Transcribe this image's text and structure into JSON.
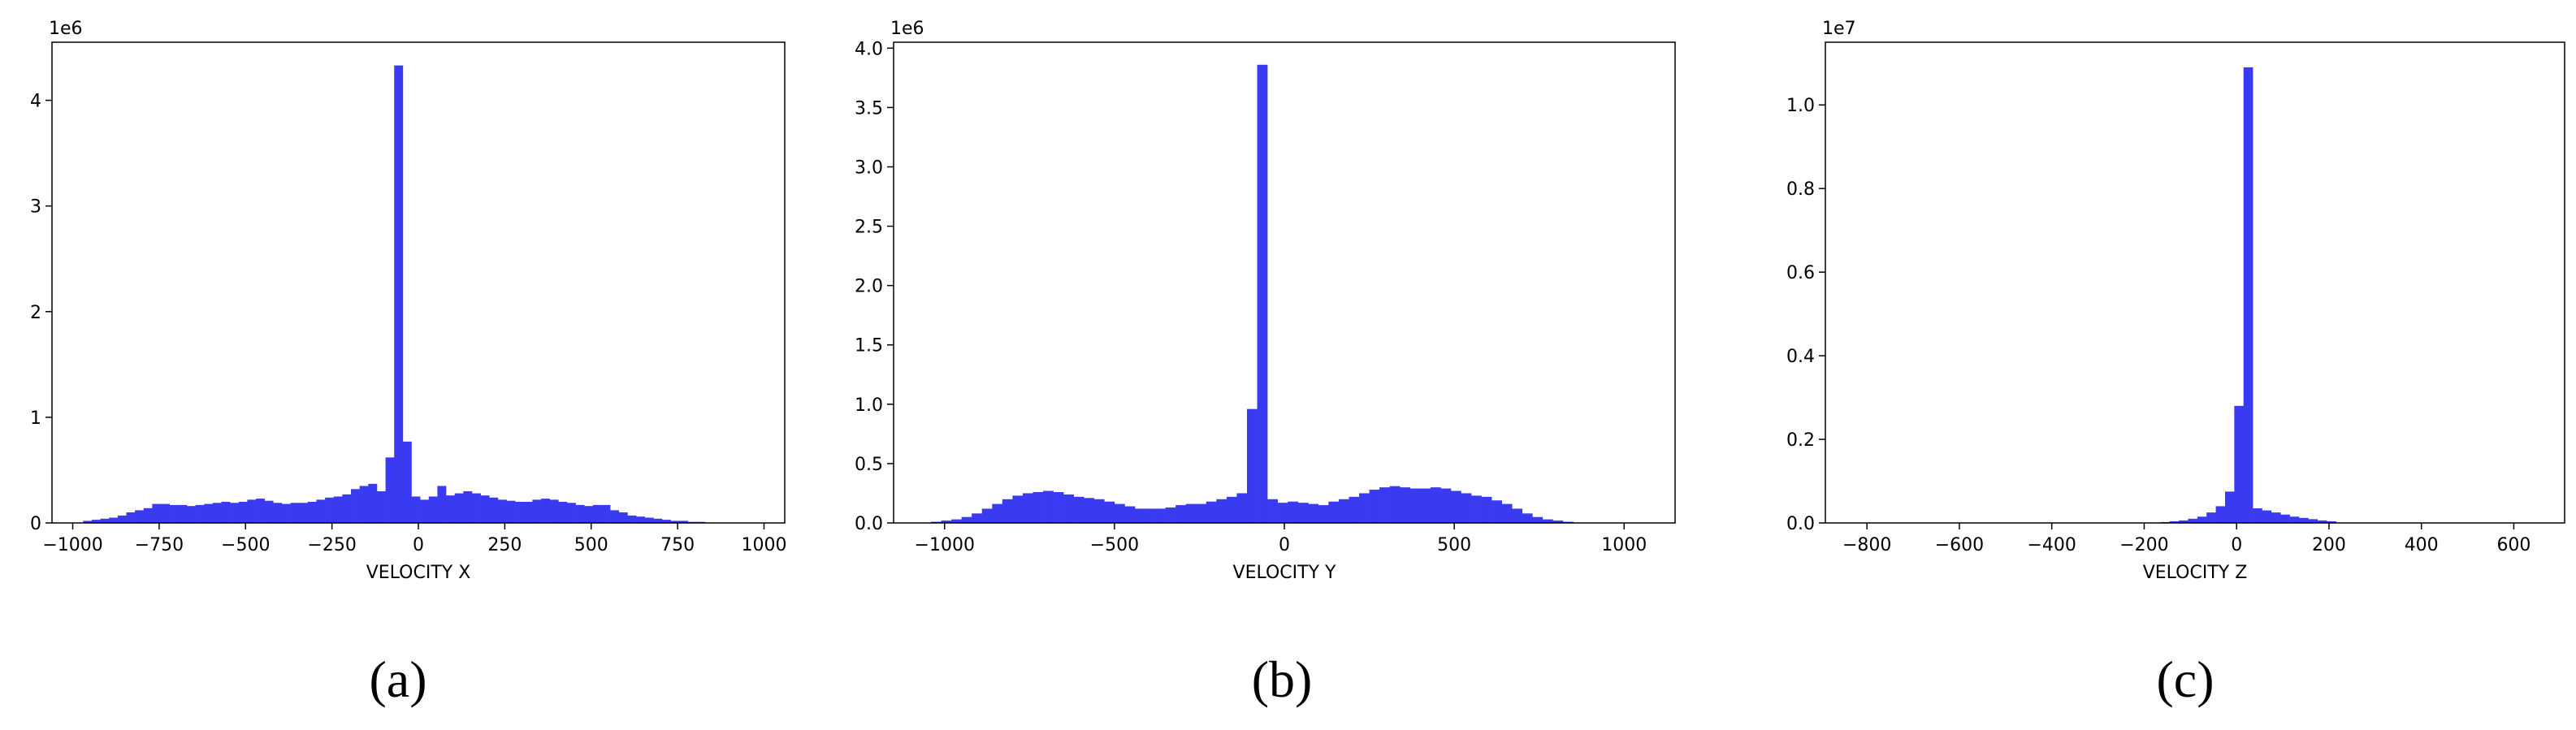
{
  "bar_color": "#3a3af2",
  "chart_data": [
    {
      "type": "bar",
      "caption": "(a)",
      "multiplier": "1e6",
      "xlabel": "VELOCITY X",
      "ylabel": "",
      "xlim": [
        -1060,
        1060
      ],
      "ylim": [
        0,
        4.55
      ],
      "xticks": [
        -1000,
        -750,
        -500,
        -250,
        0,
        250,
        500,
        750,
        1000
      ],
      "yticks": [
        0,
        1,
        2,
        3,
        4
      ],
      "xtick_labels": [
        "−1000",
        "−750",
        "−500",
        "−250",
        "0",
        "250",
        "500",
        "750",
        "1000"
      ],
      "ytick_labels": [
        "0",
        "1",
        "2",
        "3",
        "4"
      ],
      "bin_edges_start": -970,
      "bin_width": 25,
      "values": [
        0.02,
        0.03,
        0.04,
        0.05,
        0.07,
        0.1,
        0.12,
        0.14,
        0.18,
        0.18,
        0.17,
        0.17,
        0.16,
        0.17,
        0.18,
        0.19,
        0.2,
        0.19,
        0.2,
        0.22,
        0.23,
        0.21,
        0.19,
        0.18,
        0.19,
        0.19,
        0.2,
        0.22,
        0.24,
        0.25,
        0.27,
        0.32,
        0.35,
        0.37,
        0.3,
        0.62,
        4.33,
        0.77,
        0.25,
        0.22,
        0.25,
        0.35,
        0.26,
        0.28,
        0.3,
        0.28,
        0.26,
        0.24,
        0.22,
        0.21,
        0.2,
        0.2,
        0.22,
        0.23,
        0.22,
        0.2,
        0.19,
        0.17,
        0.16,
        0.17,
        0.17,
        0.12,
        0.1,
        0.07,
        0.06,
        0.05,
        0.04,
        0.03,
        0.02,
        0.02,
        0.01,
        0.01
      ]
    },
    {
      "type": "bar",
      "caption": "(b)",
      "multiplier": "1e6",
      "xlabel": "VELOCITY Y",
      "ylabel": "",
      "xlim": [
        -1150,
        1150
      ],
      "ylim": [
        0,
        4.05
      ],
      "xticks": [
        -1000,
        -500,
        0,
        500,
        1000
      ],
      "yticks": [
        0,
        0.5,
        1.0,
        1.5,
        2.0,
        2.5,
        3.0,
        3.5,
        4.0
      ],
      "xtick_labels": [
        "−1000",
        "−500",
        "0",
        "500",
        "1000"
      ],
      "ytick_labels": [
        "0.0",
        "0.5",
        "1.0",
        "1.5",
        "2.0",
        "2.5",
        "3.0",
        "3.5",
        "4.0"
      ],
      "bin_edges_start": -1040,
      "bin_width": 30,
      "values": [
        0.01,
        0.02,
        0.03,
        0.05,
        0.08,
        0.12,
        0.16,
        0.2,
        0.23,
        0.25,
        0.26,
        0.27,
        0.26,
        0.24,
        0.22,
        0.21,
        0.2,
        0.18,
        0.16,
        0.14,
        0.12,
        0.12,
        0.12,
        0.13,
        0.15,
        0.16,
        0.16,
        0.18,
        0.2,
        0.22,
        0.25,
        0.96,
        3.86,
        0.2,
        0.17,
        0.18,
        0.17,
        0.16,
        0.15,
        0.18,
        0.2,
        0.22,
        0.25,
        0.28,
        0.3,
        0.31,
        0.3,
        0.29,
        0.29,
        0.3,
        0.29,
        0.27,
        0.25,
        0.23,
        0.22,
        0.19,
        0.16,
        0.12,
        0.08,
        0.05,
        0.03,
        0.02,
        0.01
      ]
    },
    {
      "type": "bar",
      "caption": "(c)",
      "multiplier": "1e7",
      "xlabel": "VELOCITY Z",
      "ylabel": "",
      "xlim": [
        -890,
        710
      ],
      "ylim": [
        0,
        1.15
      ],
      "xticks": [
        -800,
        -600,
        -400,
        -200,
        0,
        200,
        400,
        600
      ],
      "yticks": [
        0,
        0.2,
        0.4,
        0.6,
        0.8,
        1.0
      ],
      "xtick_labels": [
        "−800",
        "−600",
        "−400",
        "−200",
        "0",
        "200",
        "400",
        "600"
      ],
      "ytick_labels": [
        "0.0",
        "0.2",
        "0.4",
        "0.6",
        "0.8",
        "1.0"
      ],
      "bin_edges_start": -165,
      "bin_width": 20,
      "values": [
        0.002,
        0.004,
        0.006,
        0.01,
        0.015,
        0.025,
        0.04,
        0.075,
        0.28,
        1.09,
        0.035,
        0.03,
        0.025,
        0.02,
        0.015,
        0.012,
        0.009,
        0.006,
        0.004
      ]
    }
  ]
}
